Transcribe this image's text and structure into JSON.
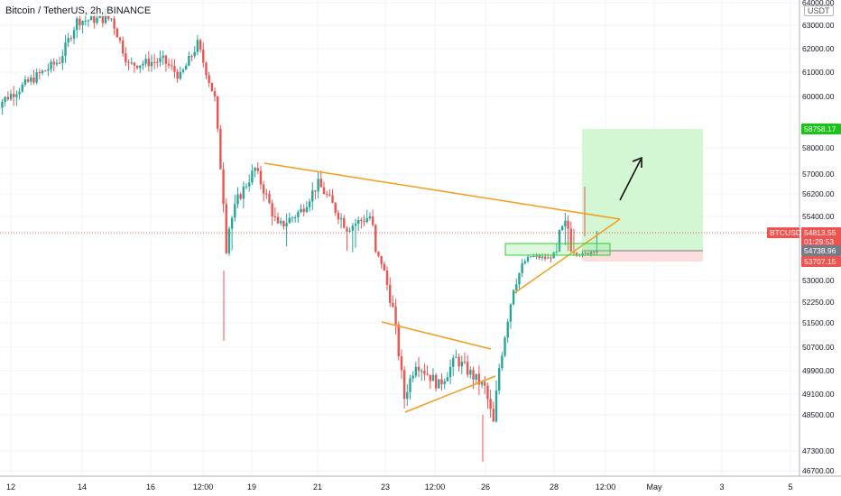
{
  "header": {
    "symbol_title": "Bitcoin / TetherUS, 2h, BINANCE",
    "currency_button": "USDT"
  },
  "price_axis": {
    "ticks": [
      "64000.00",
      "63000.00",
      "62000.00",
      "61000.00",
      "60000.00",
      "58000.00",
      "57000.00",
      "56200.00",
      "55400.00",
      "53000.00",
      "52250.00",
      "51500.00",
      "50700.00",
      "49900.00",
      "49100.00",
      "48500.00",
      "47300.00",
      "46700.00"
    ],
    "labels": {
      "ticker_tag": "BTCUSDT",
      "last_price": "54813.55",
      "countdown": "01:29:53",
      "entry_price": "54738.96",
      "target_price": "58758.17",
      "stop_price": "53707.15"
    }
  },
  "time_axis": {
    "ticks": [
      "12",
      "14",
      "16",
      "12:00",
      "19",
      "21",
      "23",
      "12:00",
      "26",
      "28",
      "12:00",
      "May",
      "3",
      "5"
    ]
  },
  "colors": {
    "up": "#26a69a",
    "down": "#ef5350",
    "trendline": "#f59c1a",
    "profit_zone": "#c8f5c8",
    "loss_zone": "#fcd4d4",
    "target_tag": "#18c418",
    "stop_tag": "#ef5350",
    "ticker_tag": "#ef5350",
    "entry_tag": "#787b86"
  },
  "chart_data": {
    "type": "candlestick",
    "symbol": "BTCUSDT",
    "interval": "2h",
    "exchange": "BINANCE",
    "ylim": [
      46500,
      64100
    ],
    "anchors": [
      {
        "x": "Apr 11 12:00",
        "price": 59500
      },
      {
        "x": "Apr 13 12:00",
        "price": 61500
      },
      {
        "x": "Apr 14 00:00",
        "price": 63200
      },
      {
        "x": "Apr 15 00:00",
        "price": 63300
      },
      {
        "x": "Apr 15 12:00",
        "price": 61300
      },
      {
        "x": "Apr 16 12:00",
        "price": 61500
      },
      {
        "x": "Apr 17 00:00",
        "price": 60800
      },
      {
        "x": "Apr 17 12:00",
        "price": 62200
      },
      {
        "x": "Apr 18 00:00",
        "price": 59900
      },
      {
        "x": "Apr 18 08:00",
        "price": 54700
      },
      {
        "x": "Apr 18 16:00",
        "price": 56000
      },
      {
        "x": "Apr 19 04:00",
        "price": 57200
      },
      {
        "x": "Apr 19 20:00",
        "price": 55000
      },
      {
        "x": "Apr 20 12:00",
        "price": 55600
      },
      {
        "x": "Apr 21 00:00",
        "price": 56600
      },
      {
        "x": "Apr 21 20:00",
        "price": 55000
      },
      {
        "x": "Apr 22 12:00",
        "price": 55400
      },
      {
        "x": "Apr 23 04:00",
        "price": 52000
      },
      {
        "x": "Apr 23 12:00",
        "price": 49000
      },
      {
        "x": "Apr 23 20:00",
        "price": 50200
      },
      {
        "x": "Apr 24 12:00",
        "price": 49400
      },
      {
        "x": "Apr 25 00:00",
        "price": 50300
      },
      {
        "x": "Apr 25 20:00",
        "price": 49300
      },
      {
        "x": "Apr 26 02:00",
        "price": 48200
      },
      {
        "x": "Apr 26 06:00",
        "price": 50000
      },
      {
        "x": "Apr 26 16:00",
        "price": 52800
      },
      {
        "x": "Apr 27 04:00",
        "price": 54200
      },
      {
        "x": "Apr 27 16:00",
        "price": 54000
      },
      {
        "x": "Apr 28 04:00",
        "price": 55100
      },
      {
        "x": "Apr 28 16:00",
        "price": 54300
      },
      {
        "x": "Apr 29 00:00",
        "price": 54800
      }
    ],
    "position": {
      "entry": 54738.96,
      "target": 58758.17,
      "stop": 53707.15,
      "last": 54813.55
    }
  }
}
